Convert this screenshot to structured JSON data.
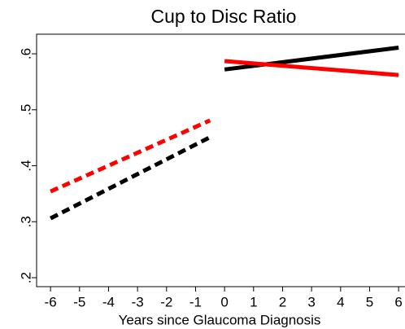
{
  "chart_data": {
    "type": "line",
    "title": "Cup to Disc Ratio",
    "x_label": "Years since Glaucoma Diagnosis",
    "xlim": [
      -6.48,
      6.22
    ],
    "xticks": [
      -6,
      -5,
      -4,
      -3,
      -2,
      -1,
      0,
      1,
      2,
      3,
      4,
      5,
      6
    ],
    "ylim": [
      0.184,
      0.635
    ],
    "yticks": [
      {
        "value": 0.2,
        "label": ".2"
      },
      {
        "value": 0.3,
        "label": ".3"
      },
      {
        "value": 0.4,
        "label": ".4"
      },
      {
        "value": 0.5,
        "label": ".5"
      },
      {
        "value": 0.6,
        "label": ".6"
      }
    ],
    "grid": false,
    "series": [
      {
        "color": "#000000",
        "dashed": true,
        "x": [
          -6,
          -0.5
        ],
        "values": [
          0.306,
          0.451
        ]
      },
      {
        "color": "#ff0000",
        "dashed": true,
        "x": [
          -6,
          -0.5
        ],
        "values": [
          0.354,
          0.481
        ]
      },
      {
        "color": "#000000",
        "dashed": false,
        "x": [
          0,
          6
        ],
        "values": [
          0.572,
          0.611
        ]
      },
      {
        "color": "#ff0000",
        "dashed": false,
        "x": [
          0,
          6
        ],
        "values": [
          0.587,
          0.562
        ]
      }
    ]
  }
}
